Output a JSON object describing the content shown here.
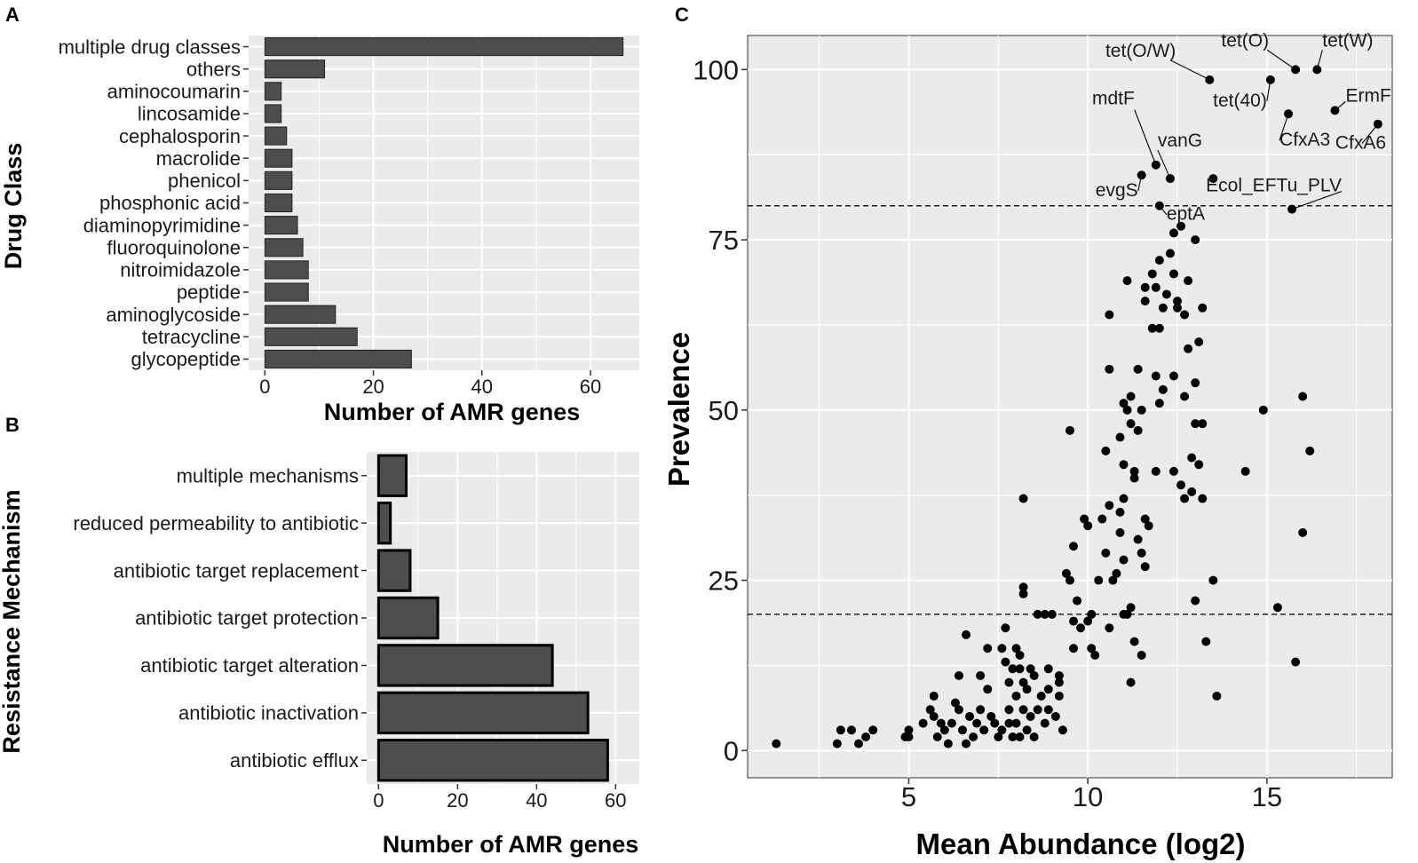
{
  "colors": {
    "panel_bg": "#ebebeb",
    "grid": "#ffffff",
    "bar": "#4d4d4d",
    "point": "#000000",
    "text": "#1a1a1a"
  },
  "panel_labels": {
    "a": "A",
    "b": "B",
    "c": "C"
  },
  "chart_data": [
    {
      "panel": "A",
      "type": "bar",
      "orientation": "horizontal",
      "ylabel": "Drug Class",
      "xlabel": "Number of AMR genes",
      "xlim": [
        -3,
        69
      ],
      "xticks": [
        0,
        20,
        40,
        60
      ],
      "categories": [
        "multiple drug classes",
        "others",
        "aminocoumarin",
        "lincosamide",
        "cephalosporin",
        "macrolide",
        "phenicol",
        "phosphonic acid",
        "diaminopyrimidine",
        "fluoroquinolone",
        "nitroimidazole",
        "peptide",
        "aminoglycoside",
        "tetracycline",
        "glycopeptide"
      ],
      "values": [
        66,
        11,
        3,
        3,
        4,
        5,
        5,
        5,
        6,
        7,
        8,
        8,
        13,
        17,
        27
      ]
    },
    {
      "panel": "B",
      "type": "bar",
      "orientation": "horizontal",
      "ylabel": "Resistance Mechanism",
      "xlabel": "Number of AMR genes",
      "xlim": [
        -3,
        66
      ],
      "xticks": [
        0,
        20,
        40,
        60
      ],
      "categories": [
        "multiple mechanisms",
        "reduced permeability to antibiotic",
        "antibiotic target replacement",
        "antibiotic target protection",
        "antibiotic target alteration",
        "antibiotic inactivation",
        "antibiotic efflux"
      ],
      "values": [
        7,
        3,
        8,
        15,
        44,
        53,
        58
      ]
    },
    {
      "panel": "C",
      "type": "scatter",
      "xlabel": "Mean Abundance (log2)",
      "ylabel": "Prevalence",
      "xlim": [
        0.5,
        18.5
      ],
      "ylim": [
        -4,
        105
      ],
      "xticks": [
        5,
        10,
        15
      ],
      "yticks": [
        0,
        25,
        50,
        75,
        100
      ],
      "hlines": [
        80,
        20
      ],
      "points": [
        [
          1.3,
          1
        ],
        [
          3.0,
          1
        ],
        [
          3.1,
          3
        ],
        [
          3.4,
          3
        ],
        [
          3.6,
          1
        ],
        [
          3.8,
          2
        ],
        [
          4.0,
          3
        ],
        [
          4.9,
          2
        ],
        [
          5.0,
          2
        ],
        [
          5.0,
          3
        ],
        [
          5.4,
          4
        ],
        [
          5.6,
          6
        ],
        [
          5.7,
          5
        ],
        [
          5.7,
          8
        ],
        [
          5.8,
          2
        ],
        [
          5.9,
          4
        ],
        [
          6.0,
          3
        ],
        [
          6.1,
          1
        ],
        [
          6.2,
          4
        ],
        [
          6.3,
          7
        ],
        [
          6.4,
          6
        ],
        [
          6.4,
          11
        ],
        [
          6.5,
          3
        ],
        [
          6.6,
          1
        ],
        [
          6.6,
          17
        ],
        [
          6.7,
          5
        ],
        [
          6.8,
          2
        ],
        [
          6.9,
          4
        ],
        [
          7.0,
          6
        ],
        [
          7.0,
          11
        ],
        [
          7.1,
          3
        ],
        [
          7.2,
          9
        ],
        [
          7.2,
          15
        ],
        [
          7.3,
          5
        ],
        [
          7.4,
          4
        ],
        [
          7.5,
          2
        ],
        [
          7.6,
          3
        ],
        [
          7.6,
          15
        ],
        [
          7.7,
          13
        ],
        [
          7.7,
          18
        ],
        [
          7.8,
          4
        ],
        [
          7.8,
          6
        ],
        [
          7.8,
          10
        ],
        [
          7.9,
          2
        ],
        [
          7.9,
          12
        ],
        [
          8.0,
          4
        ],
        [
          8.0,
          8
        ],
        [
          8.0,
          15
        ],
        [
          8.1,
          2
        ],
        [
          8.1,
          12
        ],
        [
          8.1,
          14
        ],
        [
          8.2,
          6
        ],
        [
          8.2,
          10
        ],
        [
          8.2,
          23
        ],
        [
          8.2,
          24
        ],
        [
          8.2,
          37
        ],
        [
          8.3,
          3
        ],
        [
          8.3,
          9
        ],
        [
          8.4,
          5
        ],
        [
          8.4,
          12
        ],
        [
          8.5,
          2
        ],
        [
          8.5,
          11
        ],
        [
          8.6,
          6
        ],
        [
          8.6,
          20
        ],
        [
          8.7,
          8
        ],
        [
          8.8,
          4
        ],
        [
          8.8,
          20
        ],
        [
          8.9,
          6
        ],
        [
          8.9,
          9
        ],
        [
          8.9,
          12
        ],
        [
          9.0,
          20
        ],
        [
          9.1,
          5
        ],
        [
          9.2,
          8
        ],
        [
          9.2,
          10
        ],
        [
          9.2,
          11
        ],
        [
          9.3,
          3
        ],
        [
          9.4,
          26
        ],
        [
          9.5,
          25
        ],
        [
          9.5,
          47
        ],
        [
          9.6,
          15
        ],
        [
          9.6,
          19
        ],
        [
          9.6,
          30
        ],
        [
          9.7,
          22
        ],
        [
          9.8,
          18
        ],
        [
          9.9,
          34
        ],
        [
          10.0,
          19
        ],
        [
          10.0,
          33
        ],
        [
          10.1,
          15
        ],
        [
          10.1,
          20
        ],
        [
          10.2,
          14
        ],
        [
          10.3,
          25
        ],
        [
          10.4,
          34
        ],
        [
          10.5,
          29
        ],
        [
          10.5,
          44
        ],
        [
          10.6,
          18
        ],
        [
          10.6,
          36
        ],
        [
          10.6,
          56
        ],
        [
          10.6,
          64
        ],
        [
          10.7,
          25
        ],
        [
          10.8,
          26
        ],
        [
          10.9,
          32
        ],
        [
          10.9,
          35
        ],
        [
          10.9,
          46
        ],
        [
          11.0,
          20
        ],
        [
          11.0,
          28
        ],
        [
          11.0,
          37
        ],
        [
          11.0,
          42
        ],
        [
          11.0,
          51
        ],
        [
          11.1,
          20
        ],
        [
          11.1,
          50
        ],
        [
          11.1,
          69
        ],
        [
          11.2,
          10
        ],
        [
          11.2,
          21
        ],
        [
          11.2,
          48
        ],
        [
          11.2,
          52
        ],
        [
          11.3,
          16
        ],
        [
          11.3,
          40
        ],
        [
          11.3,
          41
        ],
        [
          11.4,
          31
        ],
        [
          11.4,
          47
        ],
        [
          11.4,
          56
        ],
        [
          11.5,
          14
        ],
        [
          11.5,
          29
        ],
        [
          11.5,
          50
        ],
        [
          11.6,
          27
        ],
        [
          11.6,
          34
        ],
        [
          11.6,
          66
        ],
        [
          11.6,
          68
        ],
        [
          11.7,
          33
        ],
        [
          11.8,
          62
        ],
        [
          11.8,
          70
        ],
        [
          11.9,
          41
        ],
        [
          11.9,
          55
        ],
        [
          11.9,
          68
        ],
        [
          12.0,
          51
        ],
        [
          12.0,
          62
        ],
        [
          12.0,
          72
        ],
        [
          12.1,
          53
        ],
        [
          12.1,
          65
        ],
        [
          12.2,
          67
        ],
        [
          12.3,
          73
        ],
        [
          12.4,
          41
        ],
        [
          12.4,
          55
        ],
        [
          12.4,
          70
        ],
        [
          12.4,
          76
        ],
        [
          12.5,
          65
        ],
        [
          12.5,
          66
        ],
        [
          12.6,
          39
        ],
        [
          12.6,
          77
        ],
        [
          12.7,
          37
        ],
        [
          12.7,
          52
        ],
        [
          12.7,
          64
        ],
        [
          12.8,
          59
        ],
        [
          12.8,
          69
        ],
        [
          12.9,
          38
        ],
        [
          12.9,
          43
        ],
        [
          13.0,
          22
        ],
        [
          13.0,
          48
        ],
        [
          13.0,
          54
        ],
        [
          13.0,
          75
        ],
        [
          13.1,
          42
        ],
        [
          13.1,
          60
        ],
        [
          13.2,
          37
        ],
        [
          13.2,
          48
        ],
        [
          13.2,
          65
        ],
        [
          13.3,
          16
        ],
        [
          13.5,
          25
        ],
        [
          13.6,
          8
        ],
        [
          14.4,
          41
        ],
        [
          14.9,
          50
        ],
        [
          15.3,
          21
        ],
        [
          15.8,
          13
        ],
        [
          16.0,
          32
        ],
        [
          16.0,
          52
        ],
        [
          16.2,
          44
        ]
      ],
      "labeled_points": [
        {
          "label": "tet(O/W)",
          "x": 13.4,
          "y": 98.5
        },
        {
          "label": "tet(O)",
          "x": 15.8,
          "y": 100
        },
        {
          "label": "tet(W)",
          "x": 16.4,
          "y": 100
        },
        {
          "label": "tet(40)",
          "x": 15.1,
          "y": 98.5
        },
        {
          "label": "ErmF",
          "x": 16.9,
          "y": 94
        },
        {
          "label": "CfxA3",
          "x": 15.6,
          "y": 93.5
        },
        {
          "label": "CfxA6",
          "x": 18.1,
          "y": 92
        },
        {
          "label": "mdtF",
          "x": 11.9,
          "y": 86
        },
        {
          "label": "vanG",
          "x": 12.3,
          "y": 84
        },
        {
          "label": "evgS",
          "x": 11.5,
          "y": 84.5
        },
        {
          "label": "Ecol_EFTu_PLV",
          "x": 15.7,
          "y": 79.5
        },
        {
          "label": "eptA",
          "x": 12.0,
          "y": 80
        },
        {
          "label": "",
          "x": 13.5,
          "y": 84
        }
      ]
    }
  ]
}
